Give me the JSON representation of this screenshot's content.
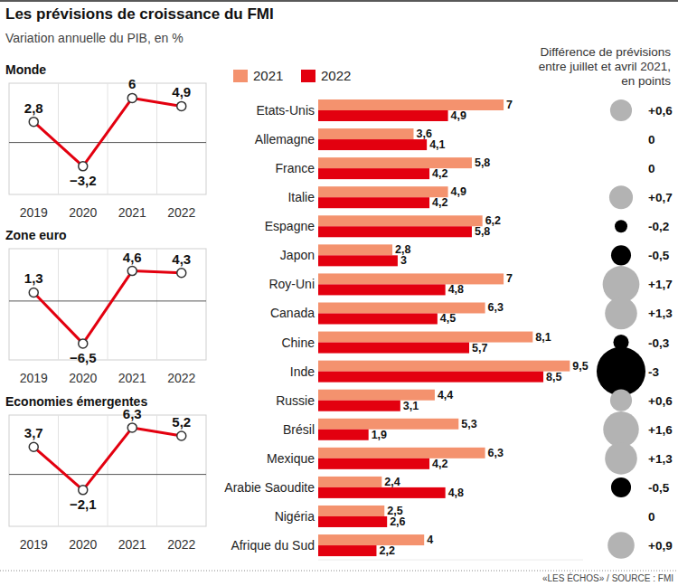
{
  "title": "Les prévisions de croissance du FMI",
  "subtitle": "Variation annuelle du PIB, en %",
  "source": "«LES ÉCHOS» / SOURCE : FMI",
  "chart_data": [
    {
      "type": "line",
      "title": "Monde",
      "categories": [
        "2019",
        "2020",
        "2021",
        "2022"
      ],
      "values": [
        2.8,
        -3.2,
        6,
        4.9
      ],
      "value_labels": [
        "2,8",
        "−3,2",
        "6",
        "4,9"
      ],
      "color": "#e3000f",
      "marker": "circle",
      "data_labels": true,
      "grid": true,
      "tick_labels": "x",
      "ylim": [
        -7,
        8
      ],
      "yticks": [
        0
      ]
    },
    {
      "type": "line",
      "title": "Zone euro",
      "categories": [
        "2019",
        "2020",
        "2021",
        "2022"
      ],
      "values": [
        1.3,
        -6.5,
        4.6,
        4.3
      ],
      "value_labels": [
        "1,3",
        "−6,5",
        "4,6",
        "4,3"
      ],
      "color": "#e3000f",
      "marker": "circle",
      "data_labels": true,
      "grid": true,
      "tick_labels": "x",
      "ylim": [
        -9,
        8
      ],
      "yticks": [
        0
      ]
    },
    {
      "type": "line",
      "title": "Economies émergentes",
      "categories": [
        "2019",
        "2020",
        "2021",
        "2022"
      ],
      "values": [
        3.7,
        -2.1,
        6.3,
        5.2
      ],
      "value_labels": [
        "3,7",
        "−2,1",
        "6,3",
        "5,2"
      ],
      "color": "#e3000f",
      "marker": "circle",
      "data_labels": true,
      "grid": true,
      "tick_labels": "x",
      "ylim": [
        -7,
        8
      ],
      "yticks": [
        0
      ]
    },
    {
      "type": "bar",
      "orientation": "horizontal",
      "legend": "top",
      "data_labels": true,
      "tick_labels": "y",
      "categories": [
        "Etats-Unis",
        "Allemagne",
        "France",
        "Italie",
        "Espagne",
        "Japon",
        "Roy-Uni",
        "Canada",
        "Chine",
        "Inde",
        "Russie",
        "Brésil",
        "Mexique",
        "Arabie Saoudite",
        "Nigéria",
        "Afrique du Sud"
      ],
      "xlim": [
        0,
        10
      ],
      "series": [
        {
          "name": "2021",
          "color": "#f4926e",
          "values": [
            7,
            3.6,
            5.8,
            4.9,
            6.2,
            2.8,
            7,
            6.3,
            8.1,
            9.5,
            4.4,
            5.3,
            6.3,
            2.4,
            2.5,
            4
          ],
          "value_labels": [
            "7",
            "3,6",
            "5,8",
            "4,9",
            "6,2",
            "2,8",
            "7",
            "6,3",
            "8,1",
            "9,5",
            "4,4",
            "5,3",
            "6,3",
            "2,4",
            "2,5",
            "4"
          ]
        },
        {
          "name": "2022",
          "color": "#e3000f",
          "values": [
            4.9,
            4.1,
            4.2,
            4.2,
            5.8,
            3,
            4.8,
            4.5,
            5.7,
            8.5,
            3.1,
            1.9,
            4.2,
            4.8,
            2.6,
            2.2
          ],
          "value_labels": [
            "4,9",
            "4,1",
            "4,2",
            "4,2",
            "5,8",
            "3",
            "4,8",
            "4,5",
            "5,7",
            "8,5",
            "3,1",
            "1,9",
            "4,2",
            "4,8",
            "2,6",
            "2,2"
          ]
        }
      ]
    },
    {
      "type": "bubble",
      "title": "Différence de prévisions\nentre juillet et avril 2021,\nen points",
      "data_labels": true,
      "tick_labels": false,
      "values": [
        0.6,
        0,
        0,
        0.7,
        -0.2,
        -0.5,
        1.7,
        1.3,
        -0.3,
        -3,
        0.6,
        1.6,
        1.3,
        -0.5,
        0,
        0.9
      ],
      "value_labels": [
        "+0,6",
        "0",
        "0",
        "+0,7",
        "-0,2",
        "-0,5",
        "+1,7",
        "+1,3",
        "-0,3",
        "-3",
        "+0,6",
        "+1,6",
        "+1,3",
        "-0,5",
        "0",
        "+0,9"
      ],
      "colors": [
        "#b3b3b3",
        "#b3b3b3",
        "#b3b3b3",
        "#b3b3b3",
        "#000000",
        "#000000",
        "#b3b3b3",
        "#b3b3b3",
        "#000000",
        "#000000",
        "#b3b3b3",
        "#b3b3b3",
        "#b3b3b3",
        "#000000",
        "#b3b3b3",
        "#b3b3b3"
      ]
    }
  ]
}
